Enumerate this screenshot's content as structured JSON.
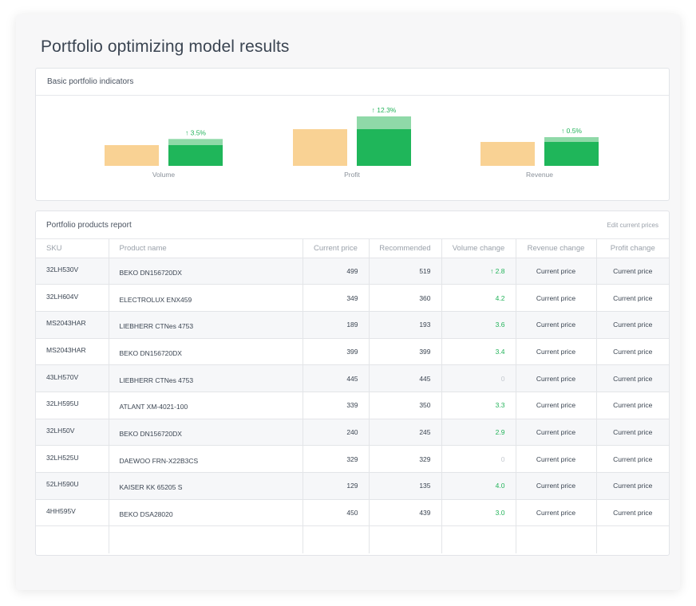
{
  "page": {
    "title": "Portfolio optimizing model results"
  },
  "indicators": {
    "title": "Basic portfolio indicators",
    "colors": {
      "current": "#f9d294",
      "recommended": "#1fb65a",
      "increase": "#8fd9a8",
      "change_text": "#23b35a"
    },
    "items": [
      {
        "label": "Volume",
        "change": "↑ 3.5%",
        "current": 100,
        "recommended": 103.5
      },
      {
        "label": "Profit",
        "change": "↑ 12.3%",
        "current": 100,
        "recommended": 112.3
      },
      {
        "label": "Revenue",
        "change": "↑ 0.5%",
        "current": 100,
        "recommended": 100.5
      }
    ]
  },
  "report": {
    "title": "Portfolio products report",
    "edit_label": "Edit current prices",
    "columns": [
      "SKU",
      "Product name",
      "Current price",
      "Recommended",
      "Volume change",
      "Revenue change",
      "Profit change"
    ],
    "rows": [
      {
        "sku": "32LH530V",
        "name": "BEKO DN156720DX",
        "price": "499",
        "recommended": "519",
        "volume": "↑ 2.8",
        "revenue": "Current price",
        "profit": "Current price"
      },
      {
        "sku": "32LH604V",
        "name": "ELECTROLUX ENX459",
        "price": "349",
        "recommended": "360",
        "volume": "4.2",
        "revenue": "Current price",
        "profit": "Current price"
      },
      {
        "sku": "MS2043HAR",
        "name": "LIEBHERR CTNes 4753",
        "price": "189",
        "recommended": "193",
        "volume": "3.6",
        "revenue": "Current price",
        "profit": "Current price"
      },
      {
        "sku": "MS2043HAR",
        "name": "BEKO DN156720DX",
        "price": "399",
        "recommended": "399",
        "volume": "3.4",
        "revenue": "Current price",
        "profit": "Current price"
      },
      {
        "sku": "43LH570V",
        "name": "LIEBHERR CTNes 4753",
        "price": "445",
        "recommended": "445",
        "volume": "0",
        "revenue": "Current price",
        "profit": "Current price"
      },
      {
        "sku": "32LH595U",
        "name": "ATLANT XM-4021-100",
        "price": "339",
        "recommended": "350",
        "volume": "3.3",
        "revenue": "Current price",
        "profit": "Current price"
      },
      {
        "sku": "32LH50V",
        "name": "BEKO DN156720DX",
        "price": "240",
        "recommended": "245",
        "volume": "2.9",
        "revenue": "Current price",
        "profit": "Current price"
      },
      {
        "sku": "32LH525U",
        "name": "DAEWOO FRN-X22B3CS",
        "price": "329",
        "recommended": "329",
        "volume": "0",
        "revenue": "Current price",
        "profit": "Current price"
      },
      {
        "sku": "52LH590U",
        "name": "KAISER KK 65205 S",
        "price": "129",
        "recommended": "135",
        "volume": "4.0",
        "revenue": "Current price",
        "profit": "Current price"
      },
      {
        "sku": "4HH595V",
        "name": "BEKO DSA28020",
        "price": "450",
        "recommended": "439",
        "volume": "3.0",
        "revenue": "Current price",
        "profit": "Current price"
      }
    ]
  }
}
